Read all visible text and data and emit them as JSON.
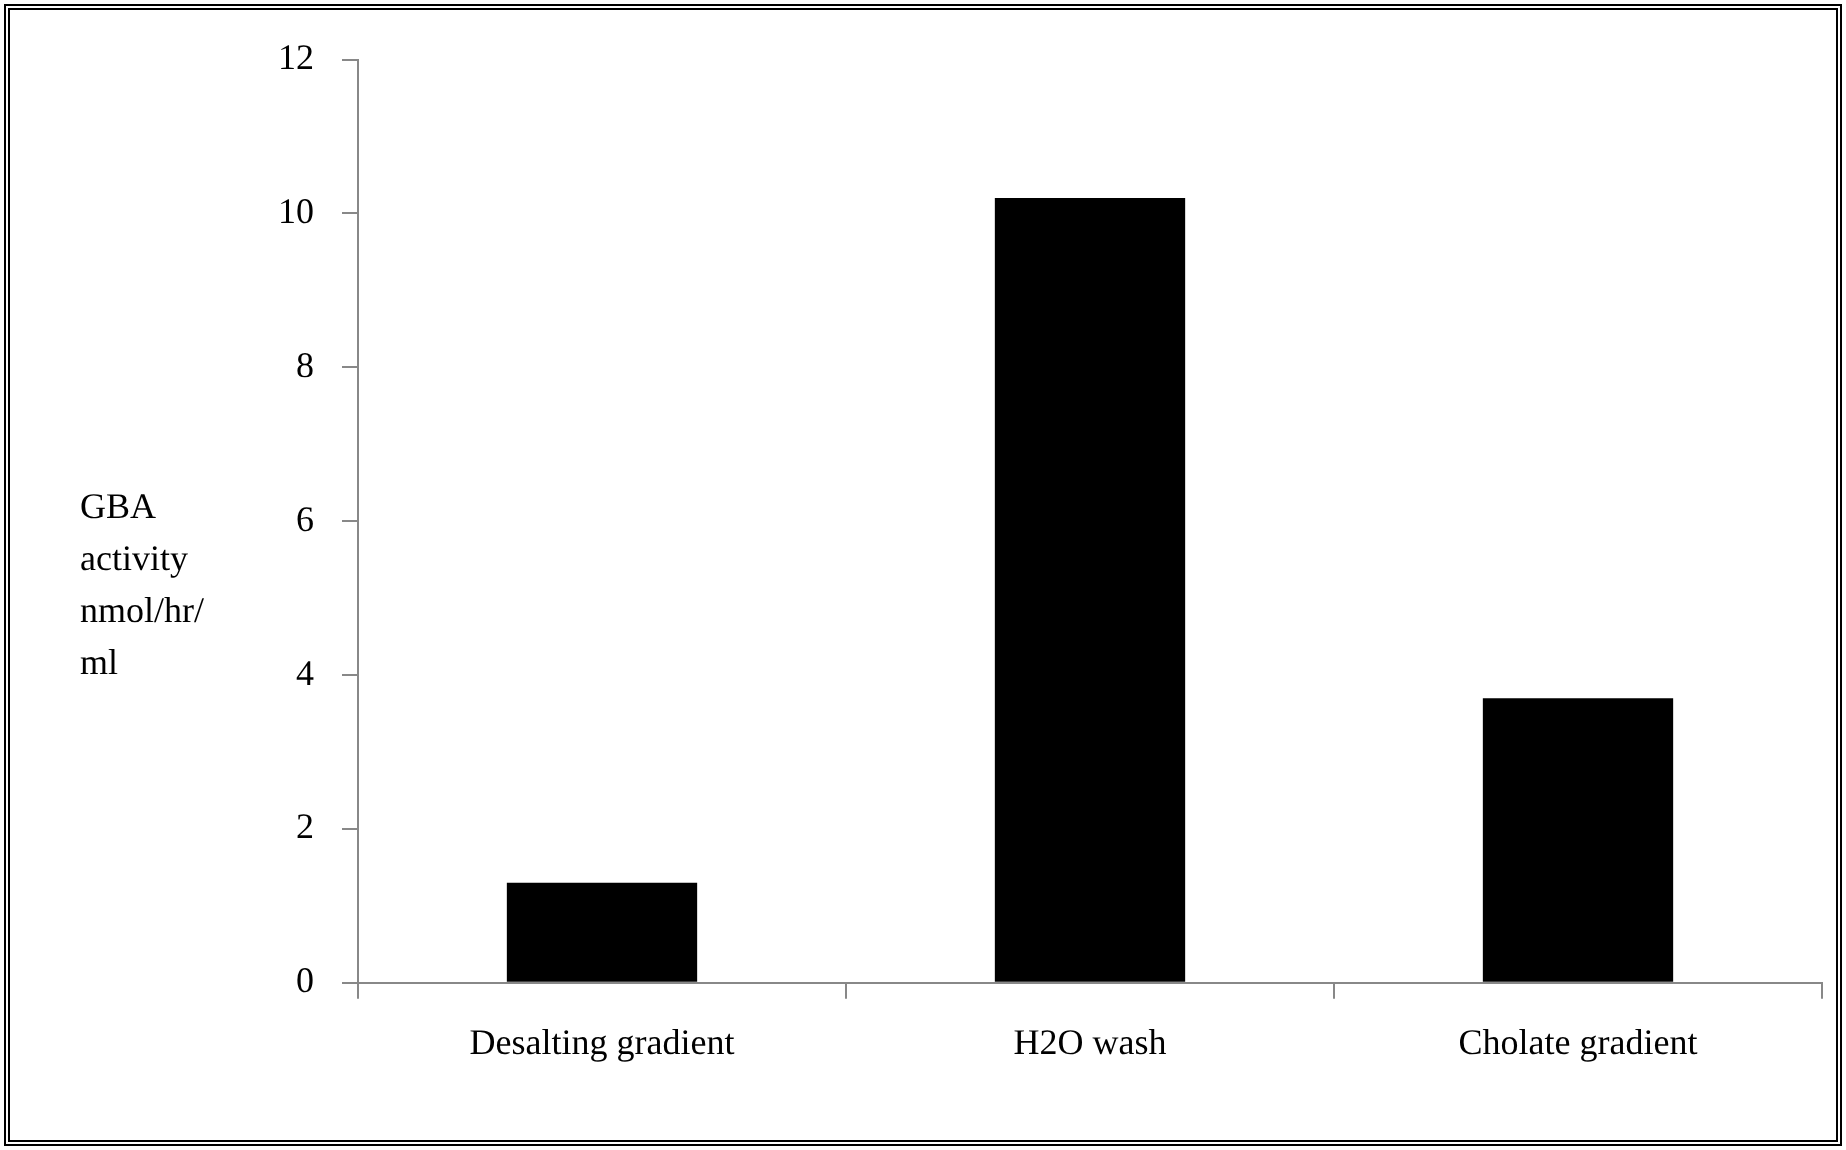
{
  "chart_data": {
    "type": "bar",
    "ylabel": "GBA activity nmol/hr/ml",
    "categories": [
      "Desalting gradient",
      "H2O wash",
      "Cholate gradient"
    ],
    "values": [
      1.3,
      10.2,
      3.7
    ],
    "color": "#000000",
    "ylim": [
      0,
      12
    ],
    "yticks": [
      0,
      2,
      4,
      6,
      8,
      10,
      12
    ],
    "grid": false,
    "legend": false
  }
}
